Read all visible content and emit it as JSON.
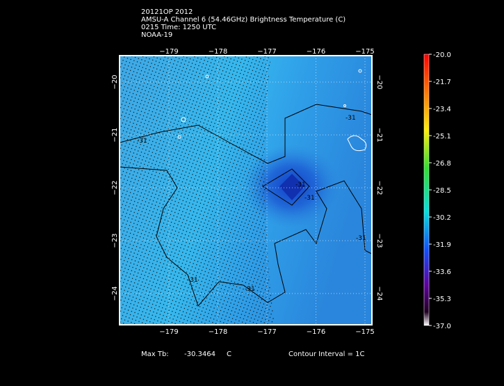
{
  "header": {
    "lines": [
      "20121OP 2012",
      "AMSU-A Channel 6 (54.46GHz) Brightness Temperature (C)",
      "0215 Time: 1250 UTC",
      "NOAA-19"
    ]
  },
  "map": {
    "longitude_labels": [
      "−179",
      "−178",
      "−177",
      "−176",
      "−175"
    ],
    "latitude_labels": [
      "−20",
      "−21",
      "−22",
      "−23",
      "−24"
    ],
    "contour_labels": [
      "-31",
      "-31",
      "-31",
      "-31",
      "-31",
      "-31",
      "-31"
    ]
  },
  "colorbar": {
    "labels": [
      "-20.0",
      "-21.7",
      "-23.4",
      "-25.1",
      "-26.8",
      "-28.5",
      "-30.2",
      "-31.9",
      "-33.6",
      "-35.3",
      "-37.0"
    ]
  },
  "footer": {
    "max_label": "Max Tb:",
    "max_value": "-30.3464",
    "max_unit": "C",
    "contour_interval": "Contour Interval = 1C"
  }
}
